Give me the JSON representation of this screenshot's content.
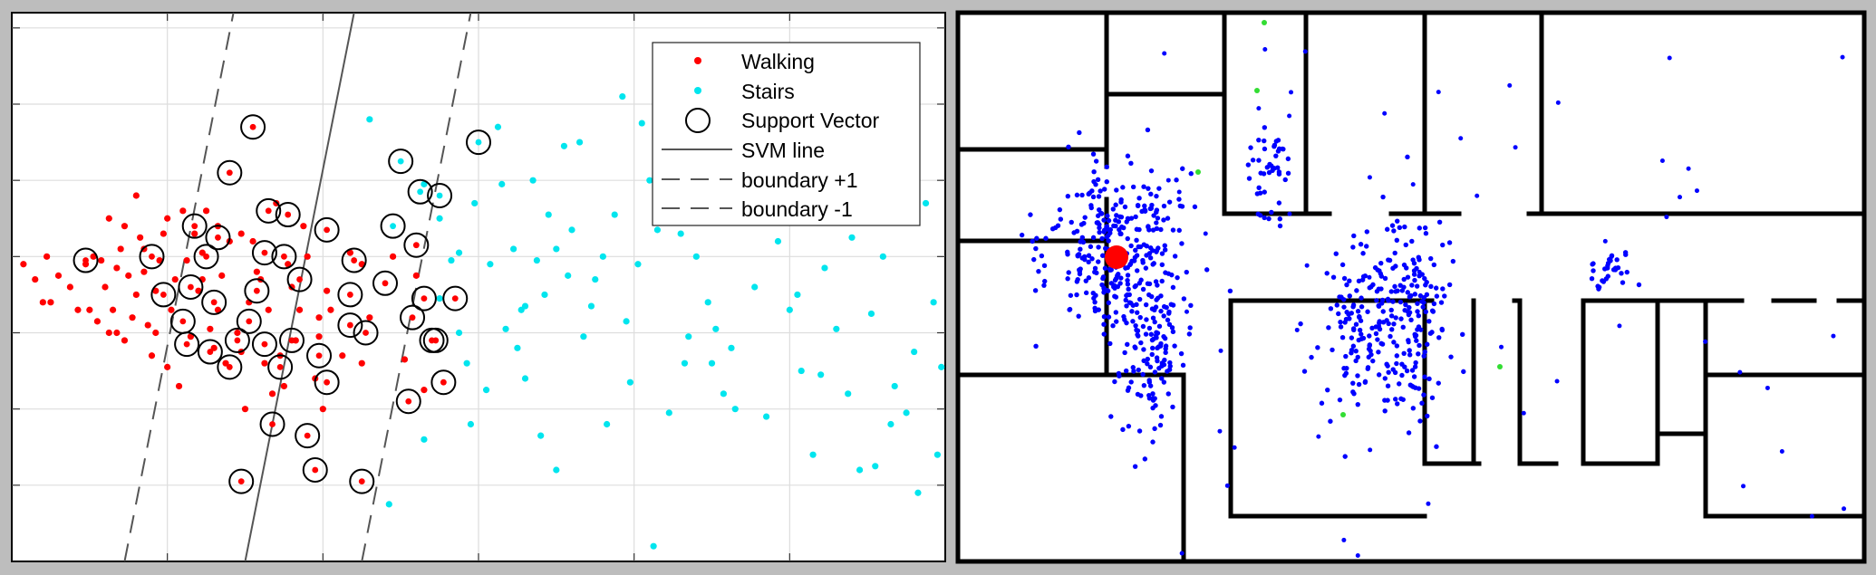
{
  "colors": {
    "walking": "#ff0000",
    "stairs": "#00e5ee",
    "support_vector": "#000000",
    "particles": "#0000ff",
    "position": "#ff0000",
    "beacon": "#33dd33",
    "frame": "#bdbdbd"
  },
  "chart_data": [
    {
      "type": "scatter",
      "grid": true,
      "legend_position": "top-right",
      "xlim": [
        0,
        12
      ],
      "ylim": [
        0,
        7.2
      ],
      "xticks": [
        0,
        2,
        4,
        6,
        8,
        10,
        12
      ],
      "yticks": [
        0,
        1,
        2,
        3,
        4,
        5,
        6,
        7
      ],
      "svm_line": {
        "x_at_ymin": 3,
        "x_at_ymax": 4.4
      },
      "boundary_plus_1": {
        "x_at_ymin": 1.45,
        "x_at_ymax": 2.85
      },
      "boundary_minus_1": {
        "x_at_ymin": 4.5,
        "x_at_ymax": 5.9
      },
      "legend": {
        "walking": "Walking",
        "stairs": "Stairs",
        "support_vector": "Support Vector",
        "svm_line": "SVM line",
        "boundary_plus": "boundary +1",
        "boundary_minus": "boundary -1"
      },
      "series": [
        {
          "name": "Walking",
          "points": [
            [
              0.15,
              3.9
            ],
            [
              0.3,
              3.7
            ],
            [
              0.4,
              3.4
            ],
            [
              0.5,
              3.4
            ],
            [
              0.75,
              3.6
            ],
            [
              0.95,
              3.9
            ],
            [
              1.05,
              4.0
            ],
            [
              1.2,
              3.6
            ],
            [
              1.3,
              3.3
            ],
            [
              1.35,
              3.0
            ],
            [
              1.4,
              4.1
            ],
            [
              1.45,
              4.4
            ],
            [
              1.5,
              3.75
            ],
            [
              1.55,
              3.2
            ],
            [
              1.6,
              3.5
            ],
            [
              1.65,
              4.25
            ],
            [
              1.7,
              3.8
            ],
            [
              1.75,
              3.1
            ],
            [
              1.8,
              2.7
            ],
            [
              1.85,
              3.55
            ],
            [
              1.9,
              3.95
            ],
            [
              1.95,
              4.3
            ],
            [
              2.0,
              4.5
            ],
            [
              2.05,
              3.3
            ],
            [
              2.1,
              3.7
            ],
            [
              2.15,
              2.3
            ],
            [
              2.2,
              4.6
            ],
            [
              2.25,
              3.95
            ],
            [
              2.35,
              4.3
            ],
            [
              2.4,
              3.55
            ],
            [
              2.45,
              4.05
            ],
            [
              2.5,
              4.6
            ],
            [
              2.55,
              3.05
            ],
            [
              2.6,
              2.8
            ],
            [
              2.65,
              4.4
            ],
            [
              2.7,
              3.75
            ],
            [
              2.8,
              4.2
            ],
            [
              2.9,
              3.0
            ],
            [
              2.95,
              2.75
            ],
            [
              3.05,
              3.4
            ],
            [
              3.1,
              4.2
            ],
            [
              3.15,
              3.8
            ],
            [
              3.25,
              2.6
            ],
            [
              3.3,
              3.3
            ],
            [
              3.4,
              4.7
            ],
            [
              3.45,
              2.7
            ],
            [
              3.55,
              3.9
            ],
            [
              3.65,
              2.9
            ],
            [
              3.7,
              3.3
            ],
            [
              3.8,
              4.0
            ],
            [
              3.9,
              2.4
            ],
            [
              3.95,
              2.95
            ],
            [
              4.05,
              3.55
            ],
            [
              4.25,
              2.7
            ],
            [
              4.5,
              3.9
            ],
            [
              4.5,
              2.6
            ],
            [
              1.1,
              3.15
            ],
            [
              1.25,
              4.5
            ],
            [
              1.6,
              4.8
            ],
            [
              2.0,
              2.55
            ],
            [
              2.3,
              2.95
            ],
            [
              2.75,
              2.6
            ],
            [
              3.0,
              2.0
            ],
            [
              3.2,
              3.7
            ],
            [
              3.5,
              2.3
            ],
            [
              3.75,
              4.4
            ],
            [
              4.1,
              3.3
            ],
            [
              4.35,
              4.05
            ],
            [
              4.6,
              3.2
            ],
            [
              5.05,
              2.65
            ],
            [
              5.2,
              3.75
            ],
            [
              5.3,
              2.25
            ],
            [
              4.9,
              4.0
            ],
            [
              1.85,
              3.0
            ],
            [
              1.35,
              3.85
            ],
            [
              0.6,
              3.75
            ],
            [
              1.0,
              3.3
            ],
            [
              1.15,
              3.95
            ],
            [
              0.85,
              3.3
            ],
            [
              1.45,
              2.9
            ],
            [
              2.45,
              3.7
            ],
            [
              2.95,
              4.3
            ],
            [
              3.35,
              2.2
            ],
            [
              3.6,
              3.6
            ],
            [
              3.95,
              3.2
            ],
            [
              4.0,
              2.0
            ],
            [
              2.65,
              3.3
            ],
            [
              1.7,
              4.1
            ],
            [
              1.25,
              3.0
            ],
            [
              0.45,
              4.0
            ]
          ]
        },
        {
          "name": "Stairs",
          "points": [
            [
              4.6,
              5.8
            ],
            [
              5.3,
              4.95
            ],
            [
              5.5,
              4.5
            ],
            [
              5.5,
              3.45
            ],
            [
              5.65,
              3.95
            ],
            [
              5.75,
              3.0
            ],
            [
              5.85,
              2.6
            ],
            [
              5.9,
              1.8
            ],
            [
              5.3,
              1.6
            ],
            [
              4.85,
              0.75
            ],
            [
              6.15,
              3.9
            ],
            [
              6.25,
              5.7
            ],
            [
              6.3,
              4.95
            ],
            [
              6.45,
              4.1
            ],
            [
              6.5,
              2.8
            ],
            [
              6.55,
              3.3
            ],
            [
              6.6,
              2.4
            ],
            [
              6.7,
              5.0
            ],
            [
              6.75,
              3.95
            ],
            [
              6.85,
              3.5
            ],
            [
              6.9,
              4.55
            ],
            [
              7.0,
              4.1
            ],
            [
              7.1,
              5.45
            ],
            [
              7.15,
              3.75
            ],
            [
              7.2,
              4.35
            ],
            [
              7.3,
              5.5
            ],
            [
              7.35,
              2.95
            ],
            [
              7.5,
              3.7
            ],
            [
              7.6,
              4.0
            ],
            [
              7.65,
              1.8
            ],
            [
              7.75,
              4.55
            ],
            [
              7.85,
              6.1
            ],
            [
              7.9,
              3.15
            ],
            [
              8.05,
              3.9
            ],
            [
              8.1,
              5.75
            ],
            [
              8.2,
              5.0
            ],
            [
              8.3,
              4.35
            ],
            [
              8.45,
              1.95
            ],
            [
              8.6,
              4.3
            ],
            [
              8.7,
              2.95
            ],
            [
              8.8,
              4.0
            ],
            [
              8.95,
              3.4
            ],
            [
              9.0,
              2.6
            ],
            [
              9.15,
              2.2
            ],
            [
              9.25,
              2.8
            ],
            [
              9.4,
              4.8
            ],
            [
              9.55,
              3.6
            ],
            [
              9.7,
              1.9
            ],
            [
              9.85,
              4.2
            ],
            [
              10.0,
              3.3
            ],
            [
              10.15,
              2.5
            ],
            [
              10.3,
              1.4
            ],
            [
              10.45,
              3.85
            ],
            [
              10.6,
              3.05
            ],
            [
              10.75,
              2.2
            ],
            [
              10.9,
              1.2
            ],
            [
              11.05,
              3.25
            ],
            [
              11.2,
              4.0
            ],
            [
              11.35,
              2.3
            ],
            [
              11.5,
              1.95
            ],
            [
              11.65,
              0.9
            ],
            [
              11.75,
              4.7
            ],
            [
              11.85,
              3.4
            ],
            [
              11.95,
              2.55
            ],
            [
              12.05,
              3.05
            ],
            [
              12.1,
              1.55
            ],
            [
              6.1,
              2.25
            ],
            [
              7.0,
              1.2
            ],
            [
              8.25,
              0.2
            ],
            [
              9.8,
              5.1
            ],
            [
              10.5,
              4.55
            ],
            [
              11.3,
              1.8
            ],
            [
              5.95,
              4.7
            ],
            [
              6.35,
              3.05
            ],
            [
              7.45,
              3.35
            ],
            [
              8.65,
              2.6
            ],
            [
              9.3,
              2.0
            ],
            [
              10.1,
              3.5
            ],
            [
              11.6,
              2.75
            ],
            [
              12.2,
              2.05
            ],
            [
              6.8,
              1.65
            ],
            [
              7.95,
              2.35
            ],
            [
              9.05,
              3.05
            ],
            [
              10.4,
              2.45
            ],
            [
              11.1,
              1.25
            ],
            [
              5.75,
              4.05
            ],
            [
              6.6,
              3.35
            ],
            [
              8.35,
              5.2
            ],
            [
              10.8,
              4.25
            ],
            [
              11.9,
              1.4
            ]
          ]
        }
      ],
      "support_vectors": [
        [
          3.1,
          5.7
        ],
        [
          2.8,
          5.1
        ],
        [
          3.3,
          4.6
        ],
        [
          2.5,
          4.0
        ],
        [
          2.65,
          4.25
        ],
        [
          3.55,
          4.55
        ],
        [
          4.05,
          4.35
        ],
        [
          4.4,
          3.95
        ],
        [
          4.35,
          3.5
        ],
        [
          3.7,
          3.7
        ],
        [
          3.15,
          3.55
        ],
        [
          3.05,
          3.15
        ],
        [
          2.9,
          2.9
        ],
        [
          2.6,
          3.4
        ],
        [
          2.25,
          2.85
        ],
        [
          2.2,
          3.15
        ],
        [
          2.55,
          2.75
        ],
        [
          2.8,
          2.55
        ],
        [
          3.25,
          2.85
        ],
        [
          3.45,
          2.55
        ],
        [
          3.6,
          2.9
        ],
        [
          3.95,
          2.7
        ],
        [
          4.05,
          2.35
        ],
        [
          4.35,
          3.1
        ],
        [
          4.55,
          3.0
        ],
        [
          4.8,
          3.65
        ],
        [
          5.15,
          3.2
        ],
        [
          5.4,
          2.9
        ],
        [
          5.55,
          2.35
        ],
        [
          5.1,
          2.1
        ],
        [
          3.8,
          1.65
        ],
        [
          3.35,
          1.8
        ],
        [
          2.95,
          1.05
        ],
        [
          3.9,
          1.2
        ],
        [
          4.5,
          1.05
        ],
        [
          2.35,
          4.4
        ],
        [
          1.8,
          4.0
        ],
        [
          0.95,
          3.95
        ],
        [
          2.3,
          3.6
        ],
        [
          1.95,
          3.5
        ],
        [
          3.5,
          4.0
        ],
        [
          3.25,
          4.05
        ],
        [
          5.3,
          3.45
        ],
        [
          5.7,
          3.45
        ],
        [
          4.9,
          4.4
        ],
        [
          5.0,
          5.25
        ],
        [
          5.25,
          4.85
        ],
        [
          5.5,
          4.8
        ],
        [
          6.0,
          5.5
        ],
        [
          5.2,
          4.15
        ],
        [
          5.45,
          2.9
        ]
      ],
      "symbol_placement": "tick-mark positions; no tick labels printed"
    },
    {
      "type": "floorplan",
      "note": "particle-filter floor map: particles, estimated position, beacons",
      "particle_clusters": [
        {
          "cx": 178,
          "cy": 267,
          "sx": 38,
          "sy": 52,
          "count": 330
        },
        {
          "cx": 215,
          "cy": 375,
          "sx": 18,
          "sy": 45,
          "count": 110
        },
        {
          "cx": 442,
          "cy": 345,
          "sx": 22,
          "sy": 48,
          "count": 120
        },
        {
          "cx": 500,
          "cy": 340,
          "sx": 20,
          "sy": 55,
          "count": 170
        },
        {
          "cx": 345,
          "cy": 178,
          "sx": 12,
          "sy": 28,
          "count": 45
        },
        {
          "cx": 720,
          "cy": 288,
          "sx": 14,
          "sy": 12,
          "count": 30
        }
      ],
      "position": [
        175,
        270
      ],
      "beacons": [
        [
          338,
          5
        ],
        [
          330,
          80
        ],
        [
          265,
          170
        ],
        [
          598,
          385
        ],
        [
          425,
          438
        ]
      ]
    }
  ]
}
